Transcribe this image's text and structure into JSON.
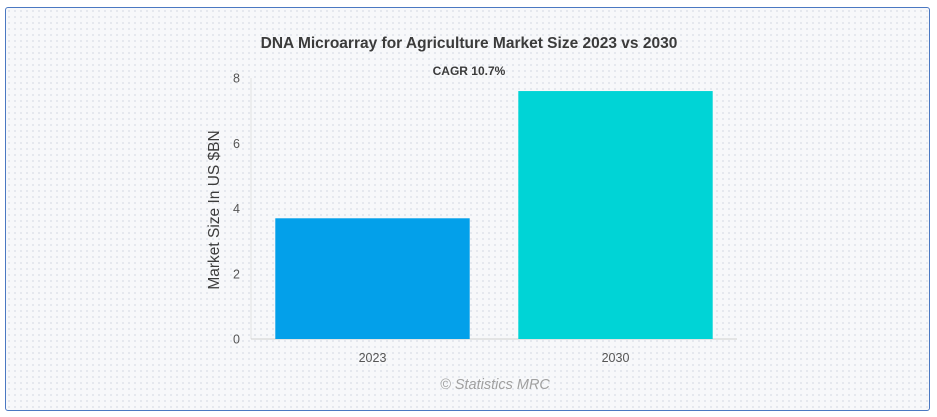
{
  "chart_data": {
    "type": "bar",
    "title": "DNA Microarray for Agriculture Market Size 2023 vs 2030",
    "subtitle": "CAGR 10.7%",
    "xlabel": "",
    "ylabel": "Market Size In US $BN",
    "categories": [
      "2023",
      "2030"
    ],
    "values": [
      3.7,
      7.6
    ],
    "bar_colors": [
      "#03a0ea",
      "#00d4d6"
    ],
    "ylim": [
      0,
      8
    ],
    "yticks": [
      "0",
      "2",
      "4",
      "6",
      "8"
    ],
    "grid": false,
    "credit": "© Statistics MRC"
  }
}
